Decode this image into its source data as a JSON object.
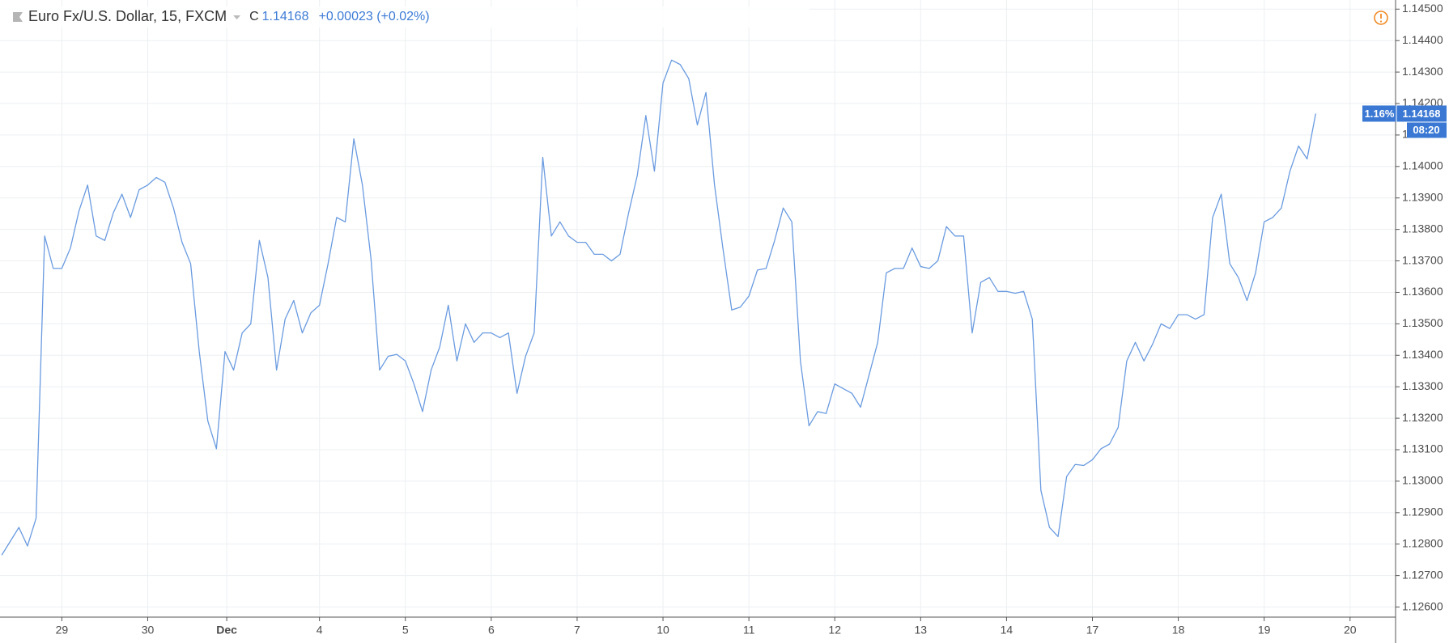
{
  "chart_data": {
    "type": "line",
    "title": "Euro Fx/U.S. Dollar, 15, FXCM",
    "close_label": "C",
    "change": "+0.00023 (+0.02%)",
    "price_badge": "1.16%",
    "time_badge": "08:20",
    "grid": true,
    "x": [
      -0.7,
      -0.6,
      -0.5,
      -0.4,
      -0.3,
      -0.2,
      -0.1,
      0,
      0.1,
      0.2,
      0.3,
      0.4,
      0.5,
      0.6,
      0.7,
      0.8,
      0.9,
      1,
      1.1,
      1.2,
      1.3,
      1.4,
      1.5,
      1.6,
      1.7,
      1.8,
      1.9,
      2,
      2.1,
      2.2,
      2.3,
      2.4,
      2.5,
      2.6,
      2.7,
      2.8,
      2.9,
      3,
      3.1,
      3.2,
      3.3,
      3.4,
      3.5,
      3.6,
      3.7,
      3.8,
      3.9,
      4,
      4.1,
      4.2,
      4.3,
      4.4,
      4.5,
      4.6,
      4.7,
      4.8,
      4.9,
      5,
      5.1,
      5.2,
      5.3,
      5.4,
      5.5,
      5.6,
      5.7,
      5.8,
      5.9,
      6,
      6.1,
      6.2,
      6.3,
      6.4,
      6.5,
      6.6,
      6.7,
      6.8,
      6.9,
      7,
      7.1,
      7.2,
      7.3,
      7.4,
      7.5,
      7.6,
      7.7,
      7.8,
      7.9,
      8,
      8.1,
      8.2,
      8.3,
      8.4,
      8.5,
      8.6,
      8.7,
      8.8,
      8.9,
      9,
      9.1,
      9.2,
      9.3,
      9.4,
      9.5,
      9.6,
      9.7,
      9.8,
      9.9,
      10,
      10.1,
      10.2,
      10.3,
      10.4,
      10.5,
      10.6,
      10.7,
      10.8,
      10.9,
      11,
      11.1,
      11.2,
      11.3,
      11.4,
      11.5,
      11.6,
      11.7,
      11.8,
      11.9,
      12,
      12.1,
      12.2,
      12.3,
      12.4,
      12.5,
      12.6,
      12.7,
      12.8,
      12.9,
      13,
      13.1,
      13.2,
      13.3,
      13.4,
      13.5,
      13.6,
      13.7,
      13.8,
      13.9,
      14,
      14.1,
      14.2,
      14.3,
      14.4,
      14.5,
      14.6
    ],
    "series": [
      {
        "name": "EURUSD",
        "color": "#6a9be0",
        "values": [
          1.12765,
          1.12809,
          1.12853,
          1.12794,
          1.12882,
          1.13779,
          1.13676,
          1.13676,
          1.13741,
          1.13859,
          1.13941,
          1.13779,
          1.13765,
          1.13853,
          1.13912,
          1.13838,
          1.13926,
          1.13941,
          1.13965,
          1.1395,
          1.13868,
          1.13759,
          1.13691,
          1.13412,
          1.13191,
          1.13103,
          1.13412,
          1.13353,
          1.13471,
          1.135,
          1.13765,
          1.13647,
          1.13353,
          1.13515,
          1.13574,
          1.13471,
          1.13535,
          1.13559,
          1.13691,
          1.13838,
          1.13824,
          1.14088,
          1.13941,
          1.13706,
          1.13353,
          1.13397,
          1.13403,
          1.13382,
          1.13309,
          1.13221,
          1.13353,
          1.13426,
          1.13559,
          1.13382,
          1.135,
          1.13441,
          1.13471,
          1.13471,
          1.13456,
          1.13471,
          1.13279,
          1.13397,
          1.13471,
          1.14029,
          1.13779,
          1.13824,
          1.13779,
          1.13759,
          1.13759,
          1.13721,
          1.13721,
          1.137,
          1.13721,
          1.13853,
          1.13971,
          1.14162,
          1.13985,
          1.14265,
          1.14338,
          1.14324,
          1.14279,
          1.14132,
          1.14235,
          1.13941,
          1.13735,
          1.13544,
          1.13553,
          1.13588,
          1.13671,
          1.13676,
          1.13765,
          1.13868,
          1.13824,
          1.13382,
          1.13176,
          1.13221,
          1.13215,
          1.13309,
          1.13294,
          1.13279,
          1.13235,
          1.13338,
          1.13441,
          1.13662,
          1.13676,
          1.13676,
          1.13741,
          1.13682,
          1.13676,
          1.137,
          1.13809,
          1.13779,
          1.13779,
          1.13471,
          1.13632,
          1.13647,
          1.13603,
          1.13603,
          1.13597,
          1.13603,
          1.13515,
          1.12971,
          1.12853,
          1.12824,
          1.13015,
          1.13053,
          1.1305,
          1.13068,
          1.13103,
          1.13118,
          1.13171,
          1.13382,
          1.13441,
          1.13382,
          1.13435,
          1.135,
          1.13485,
          1.13529,
          1.13529,
          1.13515,
          1.13529,
          1.13838,
          1.13912,
          1.13691,
          1.13647,
          1.13574,
          1.13662,
          1.13824,
          1.13838,
          1.13868,
          1.13985,
          1.14065,
          1.14024,
          1.14168
        ]
      }
    ],
    "xlim": [
      -0.72,
      15.53
    ],
    "xticks": [
      {
        "value": 0,
        "label": "29"
      },
      {
        "value": 1,
        "label": "30"
      },
      {
        "value": 1.92,
        "label": "Dec"
      },
      {
        "value": 3,
        "label": "4"
      },
      {
        "value": 4,
        "label": "5"
      },
      {
        "value": 5,
        "label": "6"
      },
      {
        "value": 6,
        "label": "7"
      },
      {
        "value": 7,
        "label": "10"
      },
      {
        "value": 8,
        "label": "11"
      },
      {
        "value": 9,
        "label": "12"
      },
      {
        "value": 10,
        "label": "13"
      },
      {
        "value": 11,
        "label": "14"
      },
      {
        "value": 12,
        "label": "17"
      },
      {
        "value": 13,
        "label": "18"
      },
      {
        "value": 14,
        "label": "19"
      },
      {
        "value": 15,
        "label": "20"
      }
    ],
    "ylim": [
      1.12568,
      1.14529
    ],
    "yticks": [
      {
        "value": 1.126,
        "label": "1.12600"
      },
      {
        "value": 1.127,
        "label": "1.12700"
      },
      {
        "value": 1.128,
        "label": "1.12800"
      },
      {
        "value": 1.129,
        "label": "1.12900"
      },
      {
        "value": 1.13,
        "label": "1.13000"
      },
      {
        "value": 1.131,
        "label": "1.13100"
      },
      {
        "value": 1.132,
        "label": "1.13200"
      },
      {
        "value": 1.133,
        "label": "1.13300"
      },
      {
        "value": 1.134,
        "label": "1.13400"
      },
      {
        "value": 1.135,
        "label": "1.13500"
      },
      {
        "value": 1.136,
        "label": "1.13600"
      },
      {
        "value": 1.137,
        "label": "1.13700"
      },
      {
        "value": 1.138,
        "label": "1.13800"
      },
      {
        "value": 1.139,
        "label": "1.13900"
      },
      {
        "value": 1.14,
        "label": "1.14000"
      },
      {
        "value": 1.141,
        "label": "1.14100"
      },
      {
        "value": 1.142,
        "label": "1.14200"
      },
      {
        "value": 1.143,
        "label": "1.14300"
      },
      {
        "value": 1.144,
        "label": "1.14400"
      },
      {
        "value": 1.145,
        "label": "1.14500"
      }
    ]
  }
}
